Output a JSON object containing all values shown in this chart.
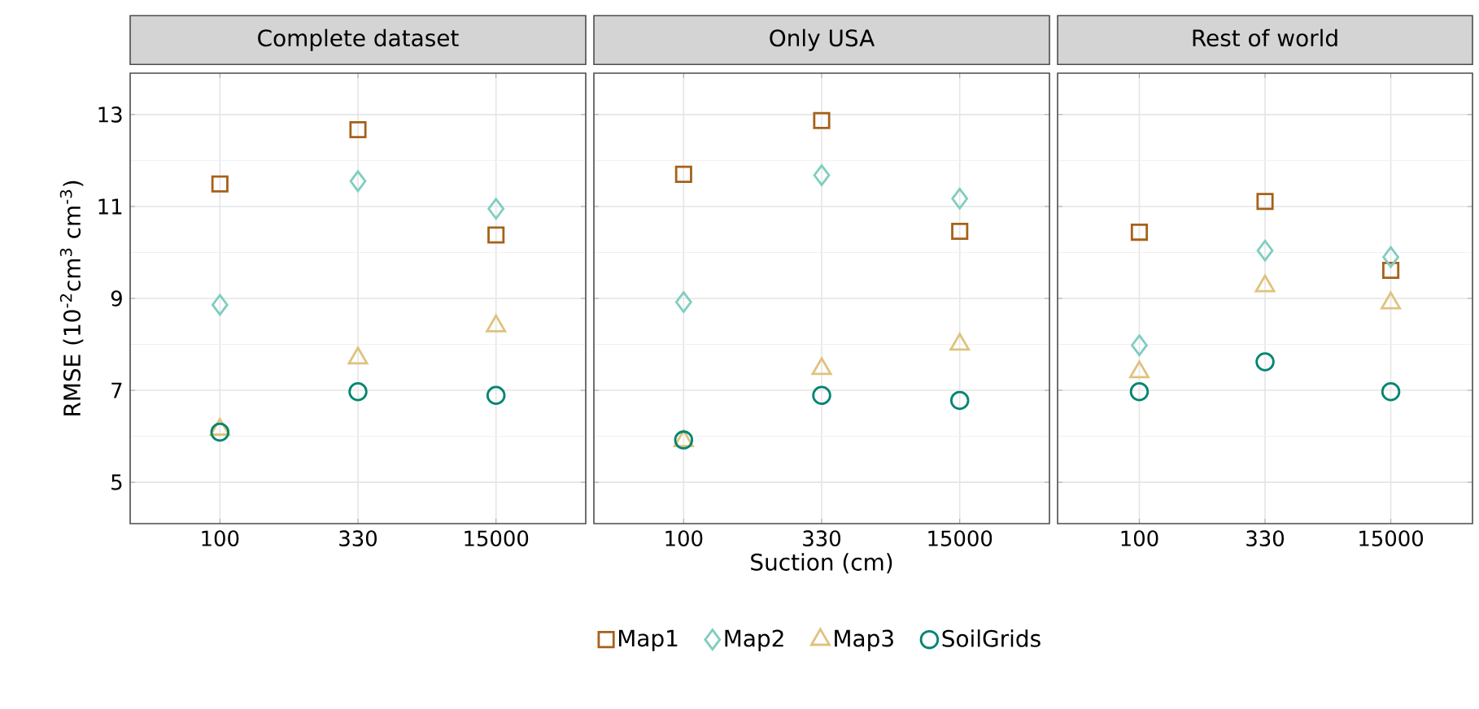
{
  "chart_data": [
    {
      "type": "scatter",
      "title": "Complete dataset",
      "ylabel": "RMSE  (10$^{-2}$cm$^{3}$ cm$^{-3}$)",
      "categories": [
        "100",
        "330",
        "15000"
      ],
      "ylim": [
        4.1,
        13.9
      ],
      "yticks": [
        5,
        7,
        9,
        11,
        13
      ],
      "grid": true,
      "series": [
        {
          "color": "#a6611a",
          "marker": "square",
          "values": [
            11.49,
            12.67,
            10.38
          ]
        },
        {
          "color": "#80cdc1",
          "marker": "diamond",
          "values": [
            8.86,
            11.55,
            10.95
          ]
        },
        {
          "color": "#dfc27d",
          "marker": "triangle",
          "values": [
            6.15,
            7.7,
            8.4
          ]
        },
        {
          "color": "#018571",
          "marker": "circle",
          "values": [
            6.09,
            6.97,
            6.89
          ]
        }
      ]
    },
    {
      "type": "scatter",
      "title": "Only USA",
      "xlabel": "Suction (cm)",
      "categories": [
        "100",
        "330",
        "15000"
      ],
      "ylim": [
        4.1,
        13.9
      ],
      "yticks": [
        5,
        7,
        9,
        11,
        13
      ],
      "grid": true,
      "tick_labels": "x",
      "legend": "bottom",
      "series": [
        {
          "name": "Map1",
          "color": "#a6611a",
          "marker": "square",
          "values": [
            11.7,
            12.87,
            10.46
          ]
        },
        {
          "name": "Map2",
          "color": "#80cdc1",
          "marker": "diamond",
          "values": [
            8.92,
            11.68,
            11.17
          ]
        },
        {
          "name": "Map3",
          "color": "#dfc27d",
          "marker": "triangle",
          "values": [
            5.9,
            7.47,
            8.0
          ]
        },
        {
          "name": "SoilGrids",
          "color": "#018571",
          "marker": "circle",
          "values": [
            5.92,
            6.89,
            6.78
          ]
        }
      ]
    },
    {
      "type": "scatter",
      "title": "Rest of world",
      "categories": [
        "100",
        "330",
        "15000"
      ],
      "ylim": [
        4.1,
        13.9
      ],
      "yticks": [
        5,
        7,
        9,
        11,
        13
      ],
      "grid": true,
      "tick_labels": "x",
      "series": [
        {
          "color": "#a6611a",
          "marker": "square",
          "values": [
            10.44,
            11.11,
            9.61
          ]
        },
        {
          "color": "#80cdc1",
          "marker": "diamond",
          "values": [
            7.98,
            10.04,
            9.9
          ]
        },
        {
          "color": "#dfc27d",
          "marker": "triangle",
          "values": [
            7.4,
            9.27,
            8.9
          ]
        },
        {
          "color": "#018571",
          "marker": "circle",
          "values": [
            6.97,
            7.62,
            6.97
          ]
        }
      ]
    }
  ]
}
